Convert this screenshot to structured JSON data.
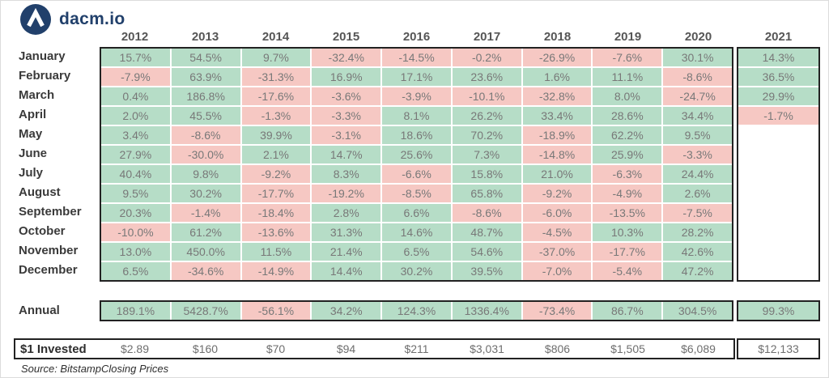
{
  "logo": {
    "text": "dacm.io",
    "icon": "caret-up-circle"
  },
  "colors": {
    "positive_cell": "#b6ddc7",
    "negative_cell": "#f6c8c3",
    "logo_navy": "#21406b",
    "border_dark": "#222222",
    "cell_text": "#787878"
  },
  "annual": {
    "label": "Annual"
  },
  "invested": {
    "label": "$1 Invested"
  },
  "source": "Source: BitstampClosing Prices",
  "chart_data": {
    "type": "heatmap",
    "title": "",
    "legend": "green = positive monthly return, pink = negative monthly return",
    "columns": [
      "2012",
      "2013",
      "2014",
      "2015",
      "2016",
      "2017",
      "2018",
      "2019",
      "2020",
      "2021"
    ],
    "rows": [
      "January",
      "February",
      "March",
      "April",
      "May",
      "June",
      "July",
      "August",
      "September",
      "October",
      "November",
      "December"
    ],
    "values_pct": [
      [
        15.7,
        54.5,
        9.7,
        -32.4,
        -14.5,
        -0.2,
        -26.9,
        -7.6,
        30.1,
        14.3
      ],
      [
        -7.9,
        63.9,
        -31.3,
        16.9,
        17.1,
        23.6,
        1.6,
        11.1,
        -8.6,
        36.5
      ],
      [
        0.4,
        186.8,
        -17.6,
        -3.6,
        -3.9,
        -10.1,
        -32.8,
        8.0,
        -24.7,
        29.9
      ],
      [
        2.0,
        45.5,
        -1.3,
        -3.3,
        8.1,
        26.2,
        33.4,
        28.6,
        34.4,
        -1.7
      ],
      [
        3.4,
        -8.6,
        39.9,
        -3.1,
        18.6,
        70.2,
        -18.9,
        62.2,
        9.5,
        null
      ],
      [
        27.9,
        -30.0,
        2.1,
        14.7,
        25.6,
        7.3,
        -14.8,
        25.9,
        -3.3,
        null
      ],
      [
        40.4,
        9.8,
        -9.2,
        8.3,
        -6.6,
        15.8,
        21.0,
        -6.3,
        24.4,
        null
      ],
      [
        9.5,
        30.2,
        -17.7,
        -19.2,
        -8.5,
        65.8,
        -9.2,
        -4.9,
        2.6,
        null
      ],
      [
        20.3,
        -1.4,
        -18.4,
        2.8,
        6.6,
        -8.6,
        -6.0,
        -13.5,
        -7.5,
        null
      ],
      [
        -10.0,
        61.2,
        -13.6,
        31.3,
        14.6,
        48.7,
        -4.5,
        10.3,
        28.2,
        null
      ],
      [
        13.0,
        450.0,
        11.5,
        21.4,
        6.5,
        54.6,
        -37.0,
        -17.7,
        42.6,
        null
      ],
      [
        6.5,
        -34.6,
        -14.9,
        14.4,
        30.2,
        39.5,
        -7.0,
        -5.4,
        47.2,
        null
      ]
    ],
    "annual_pct": [
      189.1,
      5428.7,
      -56.1,
      34.2,
      124.3,
      1336.4,
      -73.4,
      86.7,
      304.5,
      99.3
    ],
    "invested_display": [
      "$2.89",
      "$160",
      "$70",
      "$94",
      "$211",
      "$3,031",
      "$806",
      "$1,505",
      "$6,089",
      "$12,133"
    ]
  }
}
